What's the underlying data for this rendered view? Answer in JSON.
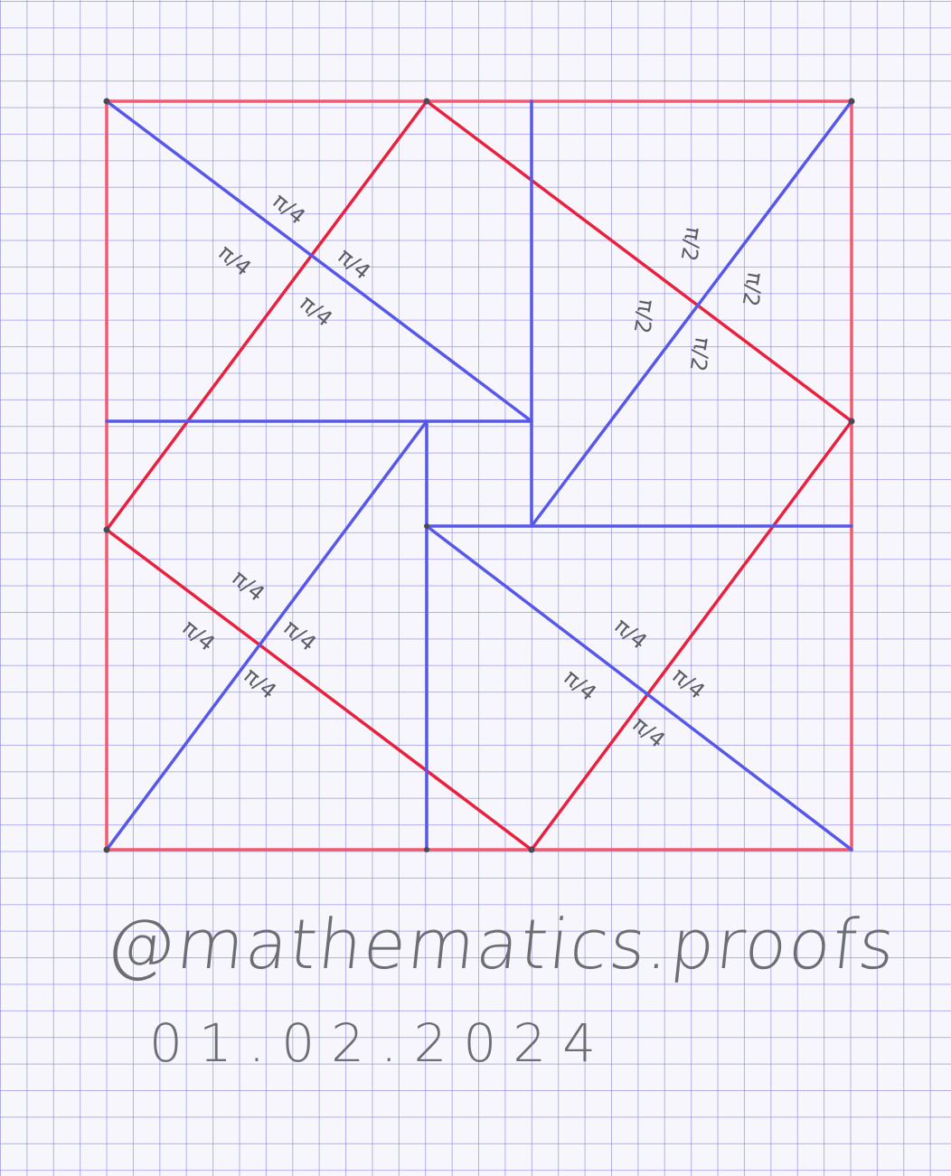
{
  "colors": {
    "grid": "#7878e1",
    "red_line": "#ee2f4d",
    "blue_line": "#5a5ae6",
    "pencil": "#6d6d74",
    "paper": "#f7f6fc"
  },
  "diagram": {
    "angle_label_tr": "π/4",
    "angle_label_pinwheel": "π/2"
  },
  "credits": {
    "handle": "@mathematics.proofs",
    "date": "01.02.2024"
  }
}
